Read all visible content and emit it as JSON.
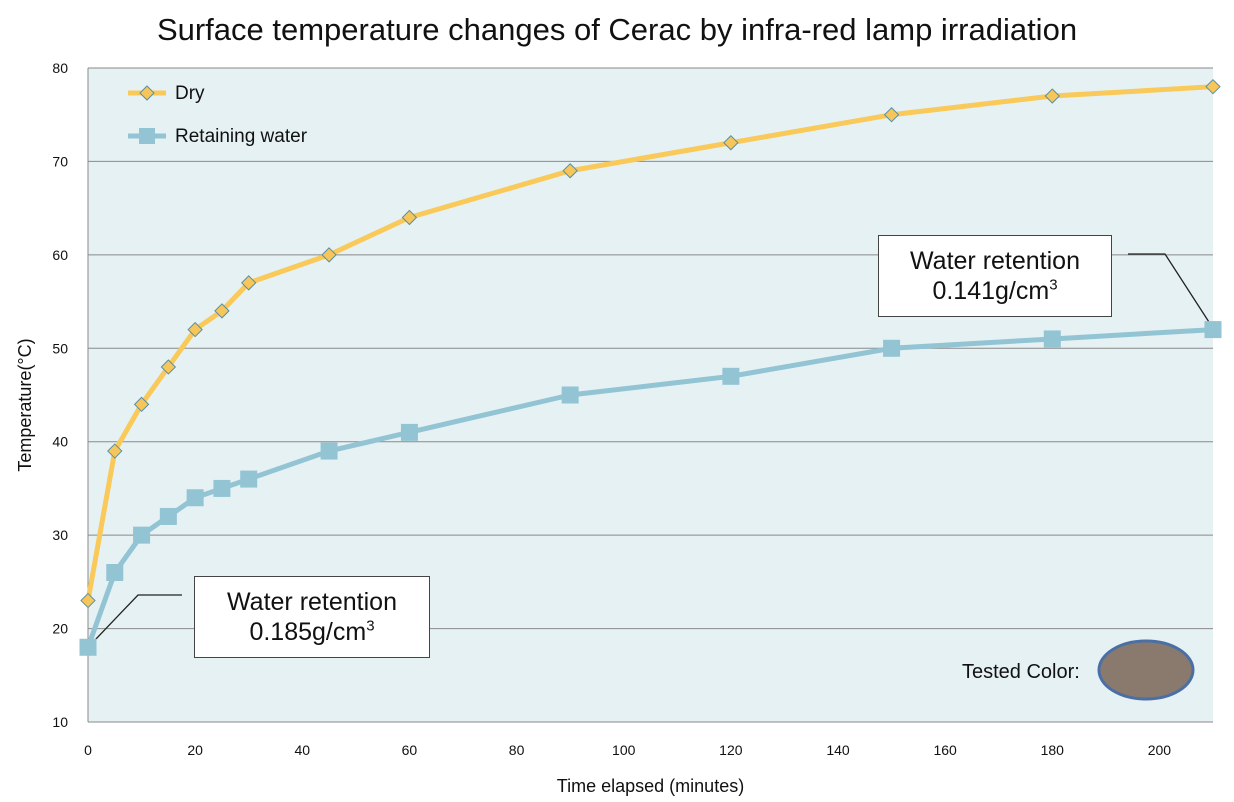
{
  "chart_data": {
    "type": "line",
    "title": "Surface temperature changes of Cerac by infra-red lamp irradiation",
    "xlabel": "Time elapsed (minutes)",
    "ylabel": "Temperature(°C)",
    "xlim": [
      0,
      210
    ],
    "ylim": [
      10,
      80
    ],
    "xticks": [
      0,
      20,
      40,
      60,
      80,
      100,
      120,
      140,
      160,
      180,
      200
    ],
    "yticks": [
      10,
      20,
      30,
      40,
      50,
      60,
      70,
      80
    ],
    "grid": "horizontal",
    "legend_position": "top-left",
    "series": [
      {
        "name": "Dry",
        "color": "#f9c95a",
        "marker": "diamond",
        "marker_fill": "#f7c65a",
        "marker_stroke": "#5a8fa0",
        "x": [
          0,
          5,
          10,
          15,
          20,
          25,
          30,
          45,
          60,
          90,
          120,
          150,
          180,
          210
        ],
        "y": [
          23,
          39,
          44,
          48,
          52,
          54,
          57,
          60,
          64,
          69,
          72,
          75,
          77,
          78
        ]
      },
      {
        "name": "Retaining water",
        "color": "#92c4d4",
        "marker": "square",
        "marker_fill": "#92c4d4",
        "marker_stroke": "#92c4d4",
        "x": [
          0,
          5,
          10,
          15,
          20,
          25,
          30,
          45,
          60,
          90,
          120,
          150,
          180,
          210
        ],
        "y": [
          18,
          26,
          30,
          32,
          34,
          35,
          36,
          39,
          41,
          45,
          47,
          50,
          51,
          52
        ]
      }
    ],
    "annotations": [
      {
        "text_line1": "Water retention",
        "text_value": "0.185g/cm",
        "text_sup": "3",
        "points_to": {
          "x": 0,
          "y": 18
        }
      },
      {
        "text_line1": "Water retention",
        "text_value": "0.141g/cm",
        "text_sup": "3",
        "points_to": {
          "x": 210,
          "y": 52
        }
      }
    ]
  },
  "swatch": {
    "label": "Tested Color:",
    "color": "#8a7a6e",
    "border_color": "#4a6fa5"
  },
  "plot_background": "#e6f1f4"
}
